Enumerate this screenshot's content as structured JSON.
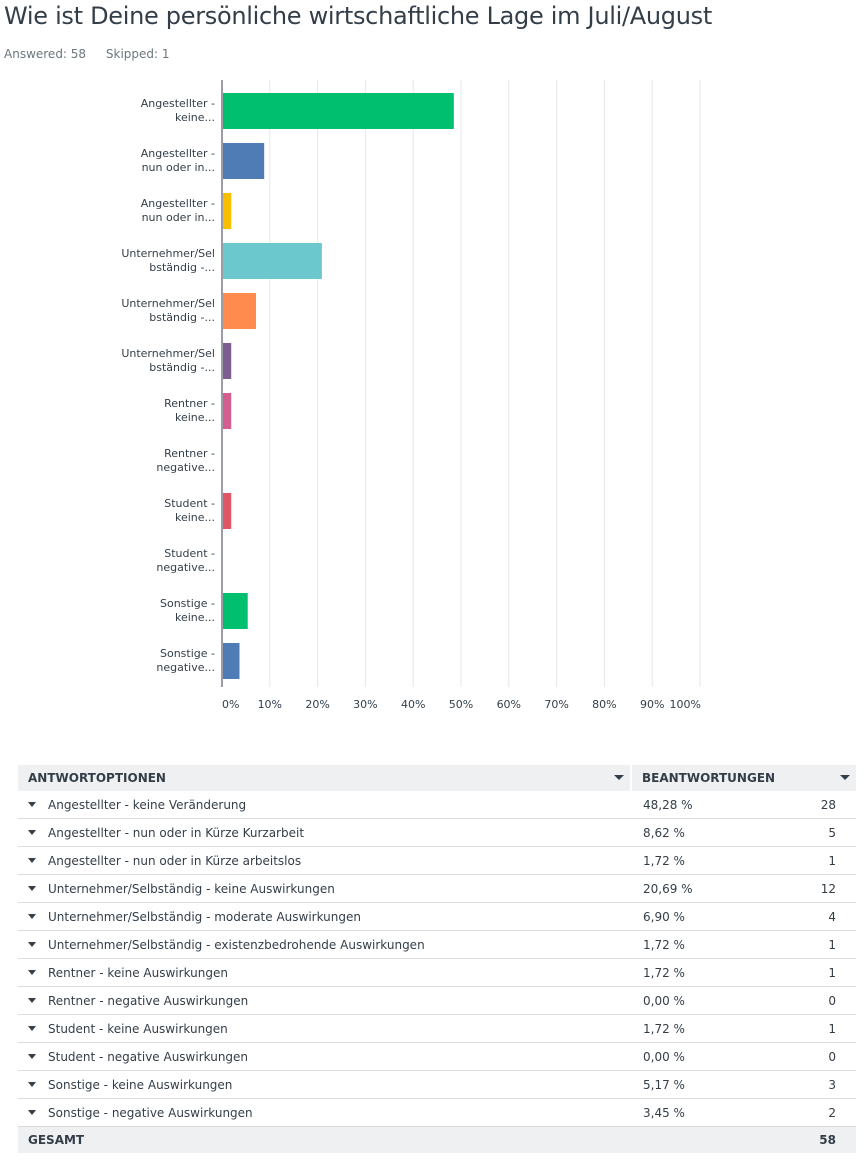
{
  "question": {
    "title": "Wie ist Deine persönliche wirtschaftliche Lage im Juli/August",
    "answered": "Answered: 58",
    "skipped": "Skipped: 1"
  },
  "chart_data": {
    "type": "bar",
    "orientation": "horizontal",
    "categories": [
      [
        "Angestellter -",
        "keine..."
      ],
      [
        "Angestellter -",
        "nun oder in..."
      ],
      [
        "Angestellter -",
        "nun oder in..."
      ],
      [
        "Unternehmer/Sel",
        "bständig -..."
      ],
      [
        "Unternehmer/Sel",
        "bständig -..."
      ],
      [
        "Unternehmer/Sel",
        "bständig -..."
      ],
      [
        "Rentner -",
        "keine..."
      ],
      [
        "Rentner -",
        "negative..."
      ],
      [
        "Student -",
        "keine..."
      ],
      [
        "Student -",
        "negative..."
      ],
      [
        "Sonstige -",
        "keine..."
      ],
      [
        "Sonstige -",
        "negative..."
      ]
    ],
    "values": [
      48.28,
      8.62,
      1.72,
      20.69,
      6.9,
      1.72,
      1.72,
      0.0,
      1.72,
      0.0,
      5.17,
      3.45
    ],
    "colors": [
      "#00bf6f",
      "#507cb6",
      "#f9be00",
      "#6bc8cd",
      "#ff8b4f",
      "#7d5e90",
      "#d25f90",
      "#99b400",
      "#e05666",
      "#333e48",
      "#00bf6f",
      "#507cb6"
    ],
    "x_ticks": [
      "0%",
      "10%",
      "20%",
      "30%",
      "40%",
      "50%",
      "60%",
      "70%",
      "80%",
      "90%",
      "100%"
    ],
    "xlim": [
      0,
      100
    ],
    "grid": true
  },
  "table": {
    "header_options": "ANTWORTOPTIONEN",
    "header_responses": "BEANTWORTUNGEN",
    "rows": [
      {
        "label": "Angestellter - keine Veränderung",
        "percent": "48,28 %",
        "count": "28"
      },
      {
        "label": "Angestellter - nun oder in Kürze Kurzarbeit",
        "percent": "8,62 %",
        "count": "5"
      },
      {
        "label": "Angestellter - nun oder in Kürze arbeitslos",
        "percent": "1,72 %",
        "count": "1"
      },
      {
        "label": "Unternehmer/Selbständig - keine Auswirkungen",
        "percent": "20,69 %",
        "count": "12"
      },
      {
        "label": "Unternehmer/Selbständig - moderate Auswirkungen",
        "percent": "6,90 %",
        "count": "4"
      },
      {
        "label": "Unternehmer/Selbständig - existenzbedrohende Auswirkungen",
        "percent": "1,72 %",
        "count": "1"
      },
      {
        "label": "Rentner - keine Auswirkungen",
        "percent": "1,72 %",
        "count": "1"
      },
      {
        "label": "Rentner - negative Auswirkungen",
        "percent": "0,00 %",
        "count": "0"
      },
      {
        "label": "Student - keine Auswirkungen",
        "percent": "1,72 %",
        "count": "1"
      },
      {
        "label": "Student - negative Auswirkungen",
        "percent": "0,00 %",
        "count": "0"
      },
      {
        "label": "Sonstige - keine Auswirkungen",
        "percent": "5,17 %",
        "count": "3"
      },
      {
        "label": "Sonstige - negative Auswirkungen",
        "percent": "3,45 %",
        "count": "2"
      }
    ],
    "total_label": "GESAMT",
    "total_count": "58"
  }
}
